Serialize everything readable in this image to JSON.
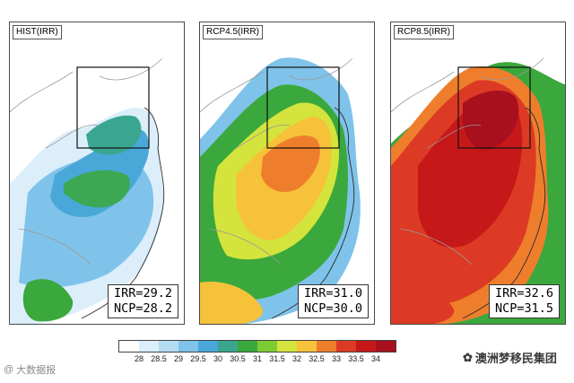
{
  "panels": [
    {
      "title": "HIST(IRR)",
      "irr": "IRR=29.2",
      "ncp": "NCP=28.2"
    },
    {
      "title": "RCP4.5(IRR)",
      "irr": "IRR=31.0",
      "ncp": "NCP=30.0"
    },
    {
      "title": "RCP8.5(IRR)",
      "irr": "IRR=32.6",
      "ncp": "NCP=31.5"
    }
  ],
  "colorbar": {
    "colors": [
      "#ffffff",
      "#dbeefa",
      "#b3dcf3",
      "#7fc3ea",
      "#49a8d8",
      "#3aa68f",
      "#3aa83c",
      "#7ccb35",
      "#d4e43c",
      "#f6c23a",
      "#ef7e2c",
      "#dc3a24",
      "#c61818",
      "#a8101e"
    ],
    "ticks": [
      "28",
      "28.5",
      "29",
      "29.5",
      "30",
      "30.5",
      "31",
      "31.5",
      "32",
      "32.5",
      "33",
      "33.5",
      "34"
    ]
  },
  "watermarks": {
    "left": "大数据报",
    "right": "澳洲梦移民集团"
  }
}
